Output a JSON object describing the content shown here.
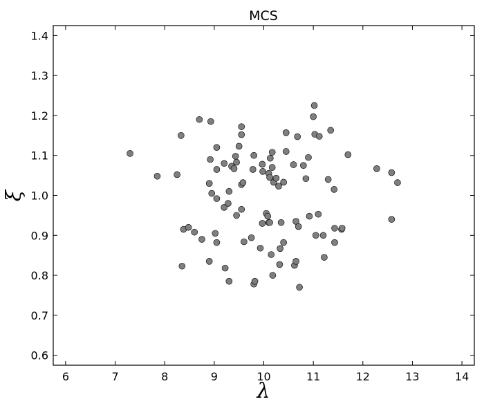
{
  "chart_data": {
    "type": "scatter",
    "title": "MCS",
    "xlabel": "λ",
    "ylabel": "ξ",
    "xlim": [
      5.75,
      14.25
    ],
    "ylim": [
      0.575,
      1.425
    ],
    "xticks": [
      6,
      7,
      8,
      9,
      10,
      11,
      12,
      13,
      14
    ],
    "yticks": [
      0.6,
      0.7,
      0.8,
      0.9,
      1.0,
      1.1,
      1.2,
      1.3,
      1.4
    ],
    "ytick_labels": [
      "0.6",
      "0.7",
      "0.8",
      "0.9",
      "1.0",
      "1.1",
      "1.2",
      "1.3",
      "1.4"
    ],
    "grid": false,
    "marker_color": "#7f7f7f",
    "marker_edge_color": "#000000",
    "series": [
      {
        "points": [
          [
            7.3,
            1.105
          ],
          [
            7.85,
            1.048
          ],
          [
            8.25,
            1.052
          ],
          [
            8.33,
            1.15
          ],
          [
            8.35,
            0.823
          ],
          [
            8.38,
            0.915
          ],
          [
            8.48,
            0.92
          ],
          [
            8.6,
            0.908
          ],
          [
            8.7,
            1.19
          ],
          [
            8.75,
            0.89
          ],
          [
            8.9,
            1.03
          ],
          [
            8.92,
            1.09
          ],
          [
            8.93,
            1.185
          ],
          [
            8.95,
            1.005
          ],
          [
            8.9,
            0.835
          ],
          [
            9.02,
            0.905
          ],
          [
            9.05,
            1.12
          ],
          [
            9.05,
            1.065
          ],
          [
            9.05,
            0.992
          ],
          [
            9.05,
            0.882
          ],
          [
            9.2,
            0.97
          ],
          [
            9.2,
            1.08
          ],
          [
            9.22,
            0.818
          ],
          [
            9.28,
            0.98
          ],
          [
            9.3,
            1.01
          ],
          [
            9.3,
            0.785
          ],
          [
            9.35,
            1.073
          ],
          [
            9.4,
            1.067
          ],
          [
            9.43,
            1.098
          ],
          [
            9.45,
            1.083
          ],
          [
            9.45,
            0.95
          ],
          [
            9.5,
            1.123
          ],
          [
            9.55,
            1.172
          ],
          [
            9.55,
            1.152
          ],
          [
            9.55,
            1.027
          ],
          [
            9.55,
            0.965
          ],
          [
            9.58,
            1.032
          ],
          [
            9.6,
            0.884
          ],
          [
            9.75,
            0.894
          ],
          [
            9.78,
            1.065
          ],
          [
            9.8,
            0.778
          ],
          [
            9.8,
            1.1
          ],
          [
            9.82,
            0.785
          ],
          [
            9.93,
            0.868
          ],
          [
            9.97,
            1.078
          ],
          [
            9.97,
            0.93
          ],
          [
            9.98,
            1.06
          ],
          [
            10.05,
            0.955
          ],
          [
            10.08,
            0.948
          ],
          [
            10.1,
            0.932
          ],
          [
            10.1,
            1.055
          ],
          [
            10.12,
            1.045
          ],
          [
            10.12,
            0.932
          ],
          [
            10.13,
            1.093
          ],
          [
            10.15,
            0.852
          ],
          [
            10.17,
            1.108
          ],
          [
            10.17,
            1.07
          ],
          [
            10.18,
            0.8
          ],
          [
            10.2,
            1.033
          ],
          [
            10.25,
            1.043
          ],
          [
            10.3,
            1.023
          ],
          [
            10.32,
            0.827
          ],
          [
            10.33,
            0.867
          ],
          [
            10.35,
            0.932
          ],
          [
            10.4,
            1.033
          ],
          [
            10.4,
            0.882
          ],
          [
            10.45,
            1.157
          ],
          [
            10.45,
            1.11
          ],
          [
            10.6,
            1.077
          ],
          [
            10.62,
            0.825
          ],
          [
            10.65,
            0.835
          ],
          [
            10.65,
            0.935
          ],
          [
            10.68,
            1.147
          ],
          [
            10.7,
            0.922
          ],
          [
            10.72,
            0.77
          ],
          [
            10.8,
            1.075
          ],
          [
            10.85,
            1.042
          ],
          [
            10.9,
            1.095
          ],
          [
            10.92,
            0.948
          ],
          [
            11.0,
            1.197
          ],
          [
            11.02,
            1.225
          ],
          [
            11.03,
            1.153
          ],
          [
            11.05,
            0.9
          ],
          [
            11.1,
            0.953
          ],
          [
            11.12,
            1.148
          ],
          [
            11.2,
            0.9
          ],
          [
            11.22,
            0.845
          ],
          [
            11.3,
            1.04
          ],
          [
            11.35,
            1.163
          ],
          [
            11.42,
            1.015
          ],
          [
            11.43,
            0.918
          ],
          [
            11.43,
            0.882
          ],
          [
            11.57,
            0.915
          ],
          [
            11.58,
            0.918
          ],
          [
            11.7,
            1.102
          ],
          [
            12.28,
            1.067
          ],
          [
            12.58,
            1.057
          ],
          [
            12.58,
            0.94
          ],
          [
            12.7,
            1.032
          ]
        ]
      }
    ]
  }
}
